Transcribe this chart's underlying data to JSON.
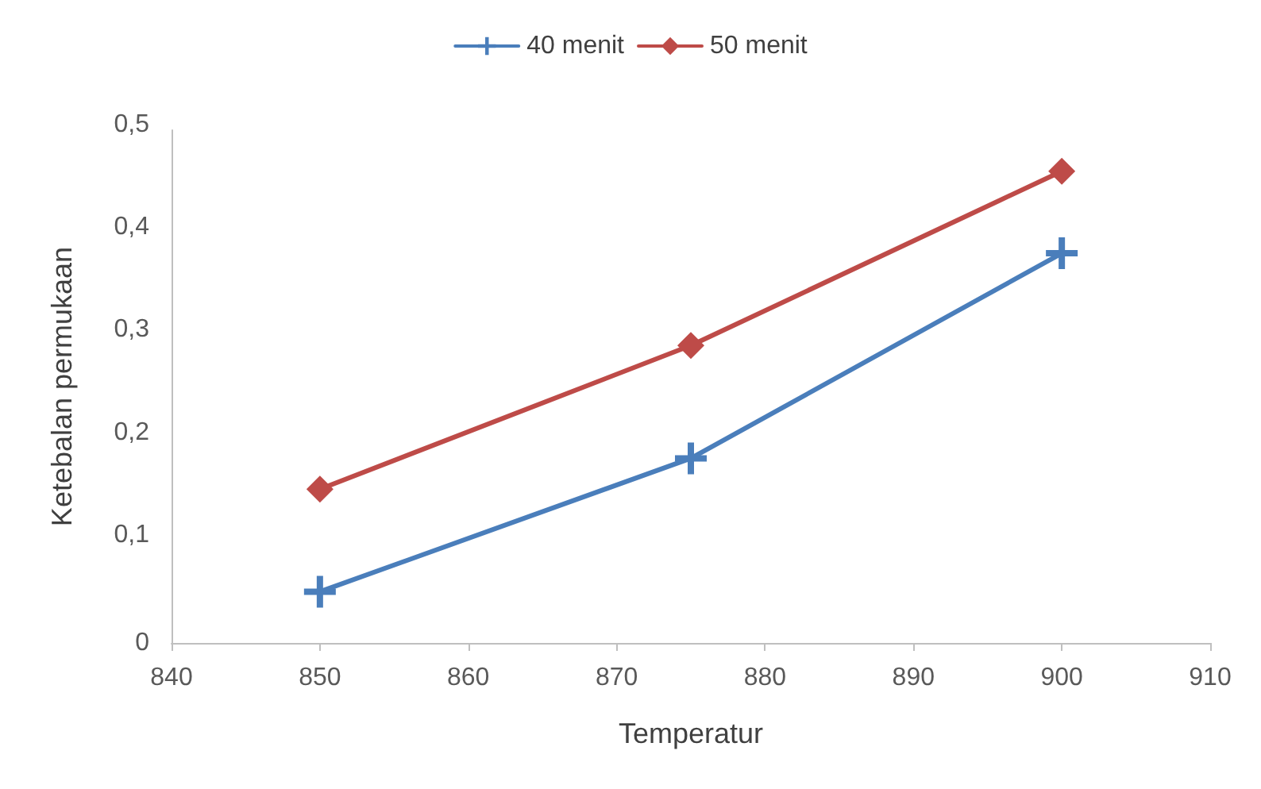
{
  "chart_data": {
    "type": "line",
    "xlabel": "Temperatur",
    "ylabel": "Ketebalan permukaan",
    "x": [
      850,
      875,
      900
    ],
    "series": [
      {
        "name": "40 menit",
        "color": "#4a7ebb",
        "marker": "cross",
        "values": [
          0.05,
          0.18,
          0.38
        ]
      },
      {
        "name": "50 menit",
        "color": "#be4b48",
        "marker": "diamond",
        "values": [
          0.15,
          0.29,
          0.46
        ]
      }
    ],
    "xlim": [
      840,
      910
    ],
    "xticks": [
      840,
      850,
      860,
      870,
      880,
      890,
      900,
      910
    ],
    "ylim": [
      0,
      0.5
    ],
    "yticks": [
      {
        "value": 0,
        "label": "0"
      },
      {
        "value": 0.1,
        "label": "0,1"
      },
      {
        "value": 0.2,
        "label": "0,2"
      },
      {
        "value": 0.3,
        "label": "0,3"
      },
      {
        "value": 0.4,
        "label": "0,4"
      },
      {
        "value": 0.5,
        "label": "0,5"
      }
    ],
    "grid": false,
    "legend": "top",
    "line_style": "solid"
  }
}
